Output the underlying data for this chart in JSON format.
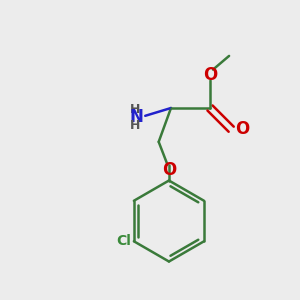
{
  "bg_color": "#ececec",
  "bond_color": "#3a7a3a",
  "bond_width": 1.8,
  "N_color": "#2222cc",
  "O_color": "#cc0000",
  "Cl_color": "#3a8a3a",
  "figsize": [
    3.0,
    3.0
  ],
  "dpi": 100,
  "xlim": [
    0,
    10
  ],
  "ylim": [
    0,
    10
  ]
}
